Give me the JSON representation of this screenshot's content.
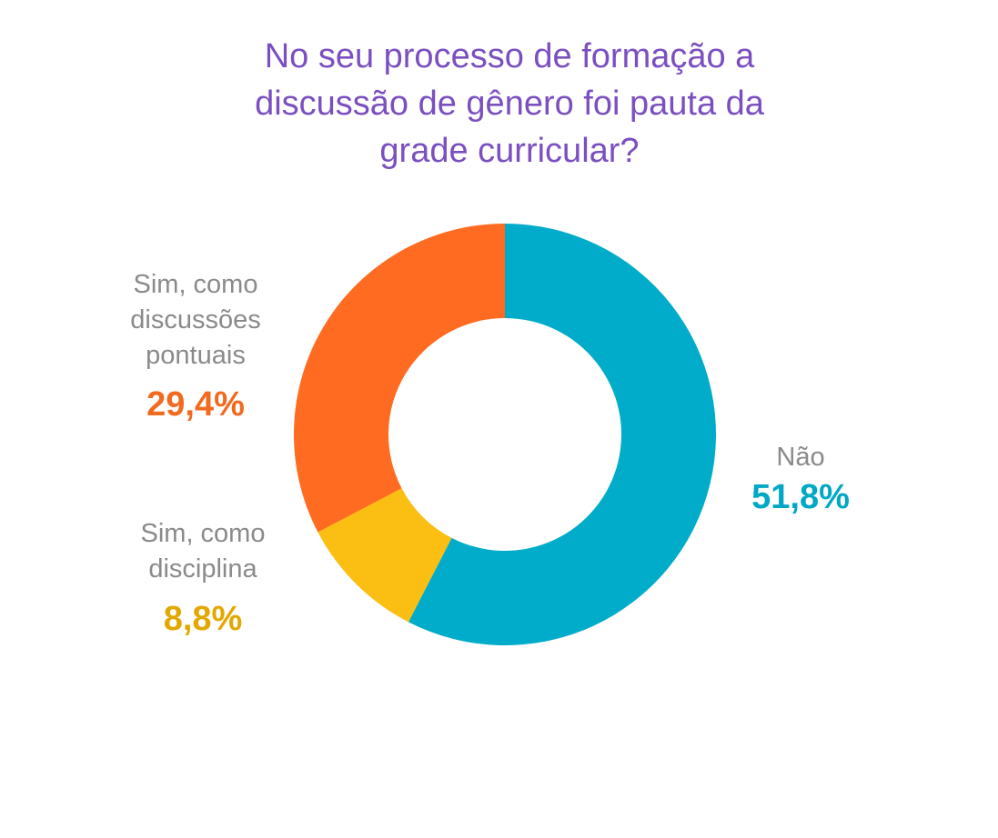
{
  "title_lines": [
    "No seu processo de formação a",
    "discussão de gênero foi pauta da",
    "grade curricular?"
  ],
  "chart_data": {
    "type": "pie",
    "variant": "donut",
    "title": "No seu processo de formação a discussão de gênero foi pauta da grade curricular?",
    "slices": [
      {
        "label": "Não",
        "value": 51.8,
        "display": "51,8%",
        "color": "#00acc9",
        "label_color": "#00a8c6"
      },
      {
        "label": "Sim, como disciplina",
        "value": 8.8,
        "display": "8,8%",
        "color": "#fbbe12",
        "label_color": "#e2a800"
      },
      {
        "label": "Sim, como discussões pontuais",
        "value": 29.4,
        "display": "29,4%",
        "color": "#ff6b21",
        "label_color": "#f26a1f"
      }
    ]
  },
  "labels": {
    "nao": {
      "lines": [
        "Não"
      ]
    },
    "disciplina": {
      "lines": [
        "Sim, como",
        "disciplina"
      ]
    },
    "pontuais": {
      "lines": [
        "Sim, como",
        "discussões",
        "pontuais"
      ]
    }
  }
}
